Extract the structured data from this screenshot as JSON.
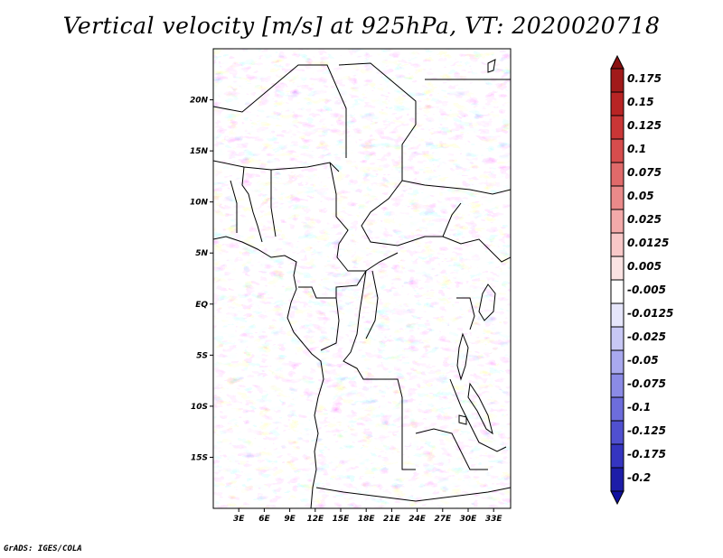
{
  "title": "Vertical velocity [m/s] at 925hPa, VT: 2020020718",
  "footer": "GrADS: IGES/COLA",
  "map": {
    "lon_range": [
      0,
      35
    ],
    "lat_range": [
      -20,
      25
    ],
    "lat_ticks": [
      {
        "value": 20,
        "label": "20N"
      },
      {
        "value": 15,
        "label": "15N"
      },
      {
        "value": 10,
        "label": "10N"
      },
      {
        "value": 5,
        "label": "5N"
      },
      {
        "value": 0,
        "label": "EQ"
      },
      {
        "value": -5,
        "label": "5S"
      },
      {
        "value": -10,
        "label": "10S"
      },
      {
        "value": -15,
        "label": "15S"
      }
    ],
    "lon_ticks": [
      {
        "value": 3,
        "label": "3E"
      },
      {
        "value": 6,
        "label": "6E"
      },
      {
        "value": 9,
        "label": "9E"
      },
      {
        "value": 12,
        "label": "12E"
      },
      {
        "value": 15,
        "label": "15E"
      },
      {
        "value": 18,
        "label": "18E"
      },
      {
        "value": 21,
        "label": "21E"
      },
      {
        "value": 24,
        "label": "24E"
      },
      {
        "value": 27,
        "label": "27E"
      },
      {
        "value": 30,
        "label": "30E"
      },
      {
        "value": 33,
        "label": "33E"
      }
    ]
  },
  "colorbar": {
    "levels": [
      {
        "label": "0.175",
        "color": "#a11a1a"
      },
      {
        "label": "0.15",
        "color": "#b82424"
      },
      {
        "label": "0.125",
        "color": "#c93636"
      },
      {
        "label": "0.1",
        "color": "#d64d4d"
      },
      {
        "label": "0.075",
        "color": "#e06a6a"
      },
      {
        "label": "0.05",
        "color": "#ea8a8a"
      },
      {
        "label": "0.025",
        "color": "#f3aaaa"
      },
      {
        "label": "0.0125",
        "color": "#f8c8c8"
      },
      {
        "label": "0.005",
        "color": "#fbe3e3"
      },
      {
        "label": "-0.005",
        "color": "#ffffff"
      },
      {
        "label": "-0.0125",
        "color": "#e6e6fb"
      },
      {
        "label": "-0.025",
        "color": "#c8c8f5"
      },
      {
        "label": "-0.05",
        "color": "#a9a9ee"
      },
      {
        "label": "-0.075",
        "color": "#8b8be6"
      },
      {
        "label": "-0.1",
        "color": "#6d6ddc"
      },
      {
        "label": "-0.125",
        "color": "#5050d0"
      },
      {
        "label": "-0.175",
        "color": "#3535c0"
      },
      {
        "label": "-0.2",
        "color": "#1d1da8"
      }
    ],
    "top_color": "#8a1010",
    "bottom_color": "#1010a0"
  }
}
